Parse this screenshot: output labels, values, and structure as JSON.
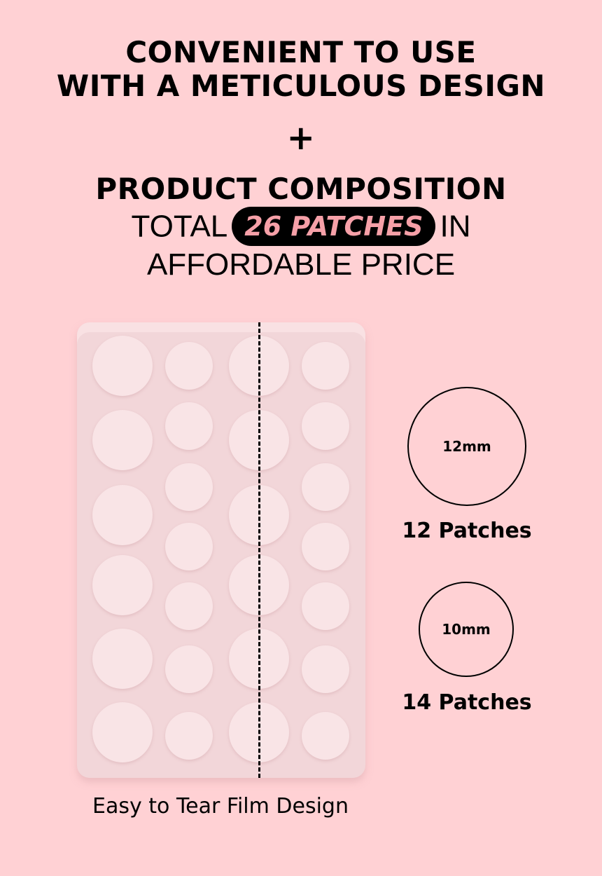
{
  "headline": {
    "line1": "CONVENIENT TO USE",
    "line2": "WITH A METICULOUS DESIGN",
    "plus": "+",
    "line3": "PRODUCT COMPOSITION",
    "total_prefix": "TOTAL",
    "badge": "26 PATCHES",
    "total_suffix": "IN",
    "line5": "AFFORDABLE PRICE"
  },
  "colors": {
    "background": "#FFD1D4",
    "badge_bg": "#000000",
    "badge_text": "#F6A0A8"
  },
  "sizes": [
    {
      "diameter": "12mm",
      "count_label": "12 Patches"
    },
    {
      "diameter": "10mm",
      "count_label": "14 Patches"
    }
  ],
  "caption": "Easy to Tear Film Design"
}
